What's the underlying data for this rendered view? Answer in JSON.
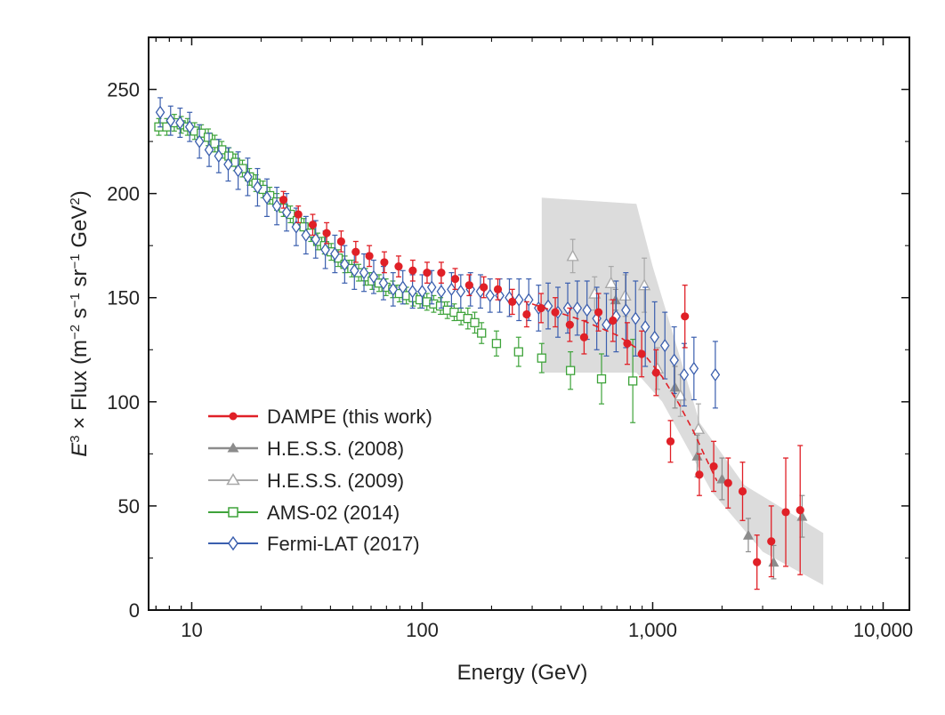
{
  "chart_data": {
    "type": "scatter",
    "xscale": "log",
    "xlim": [
      6.5,
      13000
    ],
    "ylim": [
      0,
      275
    ],
    "xticks": [
      10,
      100,
      1000,
      10000
    ],
    "xtick_labels": [
      "10",
      "100",
      "1,000",
      "10,000"
    ],
    "yticks": [
      0,
      50,
      100,
      150,
      200,
      250
    ],
    "ytick_labels": [
      "0",
      "50",
      "100",
      "150",
      "200",
      "250"
    ],
    "xlabel": "Energy (GeV)",
    "ylabel": {
      "e": "E",
      "e_exp": "3",
      "times_flux": " × Flux (m",
      "m_exp": "−2",
      "s": " s",
      "s_exp": "−1",
      "sr": " sr",
      "sr_exp": "−1",
      "gev": " GeV",
      "gev_exp": "2",
      "close": ")"
    },
    "legend_position": "lower-left",
    "band": {
      "color": "#dcdcdc",
      "upper": [
        [
          330,
          198
        ],
        [
          850,
          195
        ],
        [
          1000,
          165
        ],
        [
          1600,
          90
        ],
        [
          2500,
          60
        ],
        [
          5500,
          37
        ]
      ],
      "lower": [
        [
          5500,
          12
        ],
        [
          3000,
          28
        ],
        [
          1800,
          57
        ],
        [
          1100,
          100
        ],
        [
          850,
          114
        ],
        [
          330,
          114
        ]
      ]
    },
    "series": [
      {
        "name": "H.E.S.S. (2008)",
        "marker": "triangle-filled",
        "color": "#8c8c8c",
        "line": false,
        "points": [
          [
            690,
            149,
            5,
            5
          ],
          [
            1250,
            107,
            10,
            10
          ],
          [
            1560,
            74,
            10,
            10
          ],
          [
            2000,
            63,
            10,
            10
          ],
          [
            2600,
            36,
            8,
            8
          ],
          [
            3350,
            23,
            8,
            8
          ],
          [
            4450,
            45,
            10,
            10
          ]
        ]
      },
      {
        "name": "H.E.S.S. (2009)",
        "marker": "triangle-open",
        "color": "#a8a8a8",
        "line": false,
        "points": [
          [
            450,
            170,
            8,
            8
          ],
          [
            560,
            152,
            8,
            8
          ],
          [
            660,
            157,
            8,
            8
          ],
          [
            760,
            151,
            10,
            10
          ],
          [
            920,
            156,
            13,
            13
          ],
          [
            1050,
            116,
            10,
            10
          ],
          [
            1320,
            103,
            10,
            10
          ],
          [
            1580,
            87,
            12,
            12
          ]
        ]
      },
      {
        "name": "AMS-02 (2014)",
        "marker": "square-open",
        "color": "#3ea33a",
        "line": false,
        "points": [
          [
            7.2,
            232,
            4,
            4
          ],
          [
            7.8,
            232,
            4,
            4
          ],
          [
            8.4,
            234,
            4,
            4
          ],
          [
            9.0,
            233,
            4,
            4
          ],
          [
            9.6,
            232,
            4,
            4
          ],
          [
            10.3,
            230,
            4,
            4
          ],
          [
            11.0,
            229,
            4,
            4
          ],
          [
            11.8,
            227,
            4,
            4
          ],
          [
            12.6,
            224,
            4,
            4
          ],
          [
            13.5,
            221,
            4,
            4
          ],
          [
            14.5,
            218,
            4,
            4
          ],
          [
            15.5,
            215,
            4,
            4
          ],
          [
            16.6,
            212,
            4,
            4
          ],
          [
            17.8,
            208,
            4,
            4
          ],
          [
            19.0,
            205,
            4,
            4
          ],
          [
            20.4,
            202,
            4,
            4
          ],
          [
            21.8,
            199,
            4,
            4
          ],
          [
            23.4,
            196,
            4,
            4
          ],
          [
            25.0,
            193,
            4,
            4
          ],
          [
            26.8,
            190,
            4,
            4
          ],
          [
            28.7,
            187,
            4,
            4
          ],
          [
            30.7,
            184,
            4,
            4
          ],
          [
            32.9,
            181,
            4,
            4
          ],
          [
            35.2,
            177,
            4,
            4
          ],
          [
            37.7,
            175,
            4,
            4
          ],
          [
            40.3,
            172,
            4,
            4
          ],
          [
            43.2,
            169,
            4,
            4
          ],
          [
            46.2,
            166,
            4,
            4
          ],
          [
            49.5,
            164,
            4,
            4
          ],
          [
            53.0,
            162,
            4,
            4
          ],
          [
            56.7,
            160,
            4,
            4
          ],
          [
            60.7,
            158,
            4,
            4
          ],
          [
            65.0,
            157,
            4,
            4
          ],
          [
            69.6,
            155,
            4,
            4
          ],
          [
            74.5,
            154,
            4,
            4
          ],
          [
            79.7,
            152,
            4,
            4
          ],
          [
            85.4,
            151,
            4,
            4
          ],
          [
            91.4,
            150,
            4,
            4
          ],
          [
            97.9,
            149,
            4,
            4
          ],
          [
            104.8,
            148,
            4,
            4
          ],
          [
            112.2,
            147,
            4,
            4
          ],
          [
            120.1,
            146,
            4,
            4
          ],
          [
            128.6,
            144,
            4,
            4
          ],
          [
            137.7,
            143,
            4,
            4
          ],
          [
            147.4,
            141,
            4,
            4
          ],
          [
            157.8,
            140,
            5,
            5
          ],
          [
            169.0,
            138,
            5,
            5
          ],
          [
            181.0,
            133,
            5,
            5
          ],
          [
            210.0,
            128,
            6,
            6
          ],
          [
            262.0,
            124,
            7,
            7
          ],
          [
            330.0,
            121,
            7,
            7
          ],
          [
            440.0,
            115,
            9,
            9
          ],
          [
            600.0,
            111,
            12,
            12
          ],
          [
            820.0,
            110,
            20,
            20
          ]
        ]
      },
      {
        "name": "Fermi-LAT (2017)",
        "marker": "diamond-open",
        "color": "#3b5fae",
        "line": false,
        "points": [
          [
            7.3,
            239,
            7,
            7
          ],
          [
            8.1,
            235,
            7,
            7
          ],
          [
            8.9,
            234,
            7,
            7
          ],
          [
            9.8,
            232,
            7,
            7
          ],
          [
            10.8,
            225,
            8,
            8
          ],
          [
            11.9,
            221,
            8,
            8
          ],
          [
            13.1,
            218,
            8,
            8
          ],
          [
            14.4,
            214,
            8,
            8
          ],
          [
            15.9,
            211,
            9,
            9
          ],
          [
            17.5,
            208,
            9,
            9
          ],
          [
            19.3,
            203,
            9,
            9
          ],
          [
            21.2,
            198,
            9,
            9
          ],
          [
            23.4,
            194,
            9,
            9
          ],
          [
            25.8,
            191,
            9,
            9
          ],
          [
            28.4,
            184,
            9,
            9
          ],
          [
            31.3,
            180,
            9,
            9
          ],
          [
            34.5,
            178,
            9,
            9
          ],
          [
            38.0,
            173,
            9,
            9
          ],
          [
            41.8,
            171,
            9,
            9
          ],
          [
            46.1,
            166,
            9,
            9
          ],
          [
            50.8,
            163,
            9,
            9
          ],
          [
            55.9,
            162,
            9,
            9
          ],
          [
            61.6,
            160,
            8,
            8
          ],
          [
            67.9,
            157,
            8,
            8
          ],
          [
            74.8,
            154,
            8,
            8
          ],
          [
            82.4,
            155,
            8,
            8
          ],
          [
            90.8,
            153,
            8,
            8
          ],
          [
            100,
            153,
            8,
            8
          ],
          [
            110,
            155,
            8,
            8
          ],
          [
            121,
            153,
            8,
            8
          ],
          [
            134,
            154,
            8,
            8
          ],
          [
            147,
            153,
            8,
            8
          ],
          [
            162,
            154,
            8,
            8
          ],
          [
            179,
            153,
            8,
            8
          ],
          [
            197,
            151,
            8,
            8
          ],
          [
            217,
            151,
            8,
            8
          ],
          [
            239,
            150,
            9,
            9
          ],
          [
            263,
            149,
            10,
            10
          ],
          [
            290,
            149,
            10,
            10
          ],
          [
            320,
            145,
            11,
            11
          ],
          [
            352,
            146,
            11,
            11
          ],
          [
            388,
            143,
            12,
            12
          ],
          [
            428,
            145,
            12,
            12
          ],
          [
            471,
            145,
            13,
            13
          ],
          [
            519,
            144,
            14,
            14
          ],
          [
            572,
            140,
            15,
            15
          ],
          [
            630,
            137,
            15,
            15
          ],
          [
            694,
            141,
            17,
            17
          ],
          [
            765,
            144,
            18,
            18
          ],
          [
            843,
            140,
            18,
            18
          ],
          [
            929,
            136,
            19,
            19
          ],
          [
            1020,
            131,
            17,
            17
          ],
          [
            1130,
            127,
            16,
            16
          ],
          [
            1240,
            120,
            16,
            16
          ],
          [
            1370,
            113,
            15,
            15
          ],
          [
            1510,
            116,
            15,
            15
          ],
          [
            1870,
            113,
            16,
            16
          ]
        ]
      },
      {
        "name": "DAMPE (this work)",
        "marker": "circle-filled",
        "color": "#e02027",
        "line": false,
        "points": [
          [
            25.0,
            197,
            4,
            4
          ],
          [
            29.0,
            190,
            4,
            4
          ],
          [
            33.5,
            185,
            5,
            5
          ],
          [
            38.5,
            181,
            5,
            5
          ],
          [
            44.5,
            177,
            5,
            5
          ],
          [
            51.5,
            172,
            5,
            5
          ],
          [
            59.0,
            170,
            5,
            5
          ],
          [
            68.5,
            167,
            5,
            5
          ],
          [
            79.0,
            165,
            5,
            5
          ],
          [
            91.0,
            163,
            5,
            5
          ],
          [
            105,
            162,
            5,
            5
          ],
          [
            121,
            162,
            5,
            5
          ],
          [
            139,
            159,
            5,
            5
          ],
          [
            160,
            156,
            5,
            5
          ],
          [
            185,
            155,
            5,
            5
          ],
          [
            213,
            154,
            5,
            5
          ],
          [
            246,
            148,
            6,
            6
          ],
          [
            284,
            142,
            6,
            6
          ],
          [
            328,
            145,
            7,
            7
          ],
          [
            378,
            143,
            7,
            7
          ],
          [
            437,
            137,
            8,
            8
          ],
          [
            504,
            131,
            8,
            8
          ],
          [
            582,
            143,
            9,
            9
          ],
          [
            672,
            139,
            10,
            10
          ],
          [
            776,
            128,
            10,
            10
          ],
          [
            896,
            123,
            11,
            11
          ],
          [
            1035,
            114,
            11,
            11
          ],
          [
            1195,
            81,
            10,
            10
          ],
          [
            1380,
            141,
            15,
            15
          ],
          [
            1594,
            65,
            10,
            10
          ],
          [
            1840,
            69,
            12,
            12
          ],
          [
            2125,
            61,
            12,
            12
          ],
          [
            2455,
            57,
            14,
            14
          ],
          [
            2835,
            23,
            13,
            13
          ],
          [
            3270,
            33,
            17,
            17
          ],
          [
            3780,
            47,
            26,
            26
          ],
          [
            4365,
            48,
            31,
            31
          ]
        ]
      }
    ],
    "fit_line": {
      "color": "#e02027",
      "style": "dashed",
      "points": [
        [
          300,
          147
        ],
        [
          500,
          139
        ],
        [
          700,
          132
        ],
        [
          900,
          124
        ],
        [
          1100,
          112
        ],
        [
          1300,
          99
        ],
        [
          1500,
          86
        ],
        [
          1700,
          73
        ],
        [
          1900,
          62
        ]
      ]
    }
  }
}
